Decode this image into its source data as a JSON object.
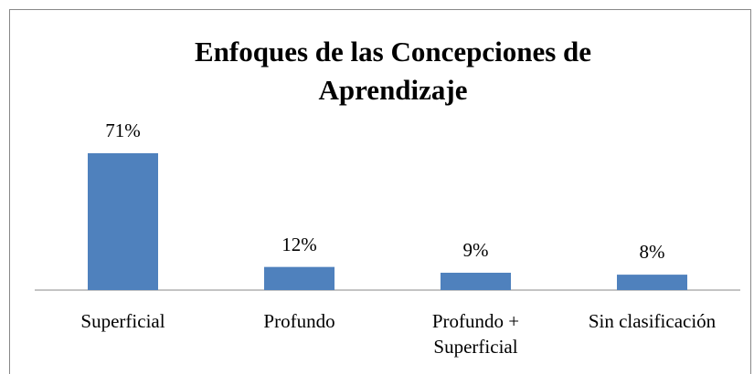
{
  "chart_data": {
    "type": "bar",
    "title": "Enfoques de las Concepciones de Aprendizaje",
    "categories": [
      "Superficial",
      "Profundo",
      "Profundo + Superficial",
      "Sin clasificación"
    ],
    "values": [
      71,
      12,
      9,
      8
    ],
    "value_labels": [
      "71%",
      "12%",
      "9%",
      "8%"
    ],
    "color": "#4f81bd"
  }
}
